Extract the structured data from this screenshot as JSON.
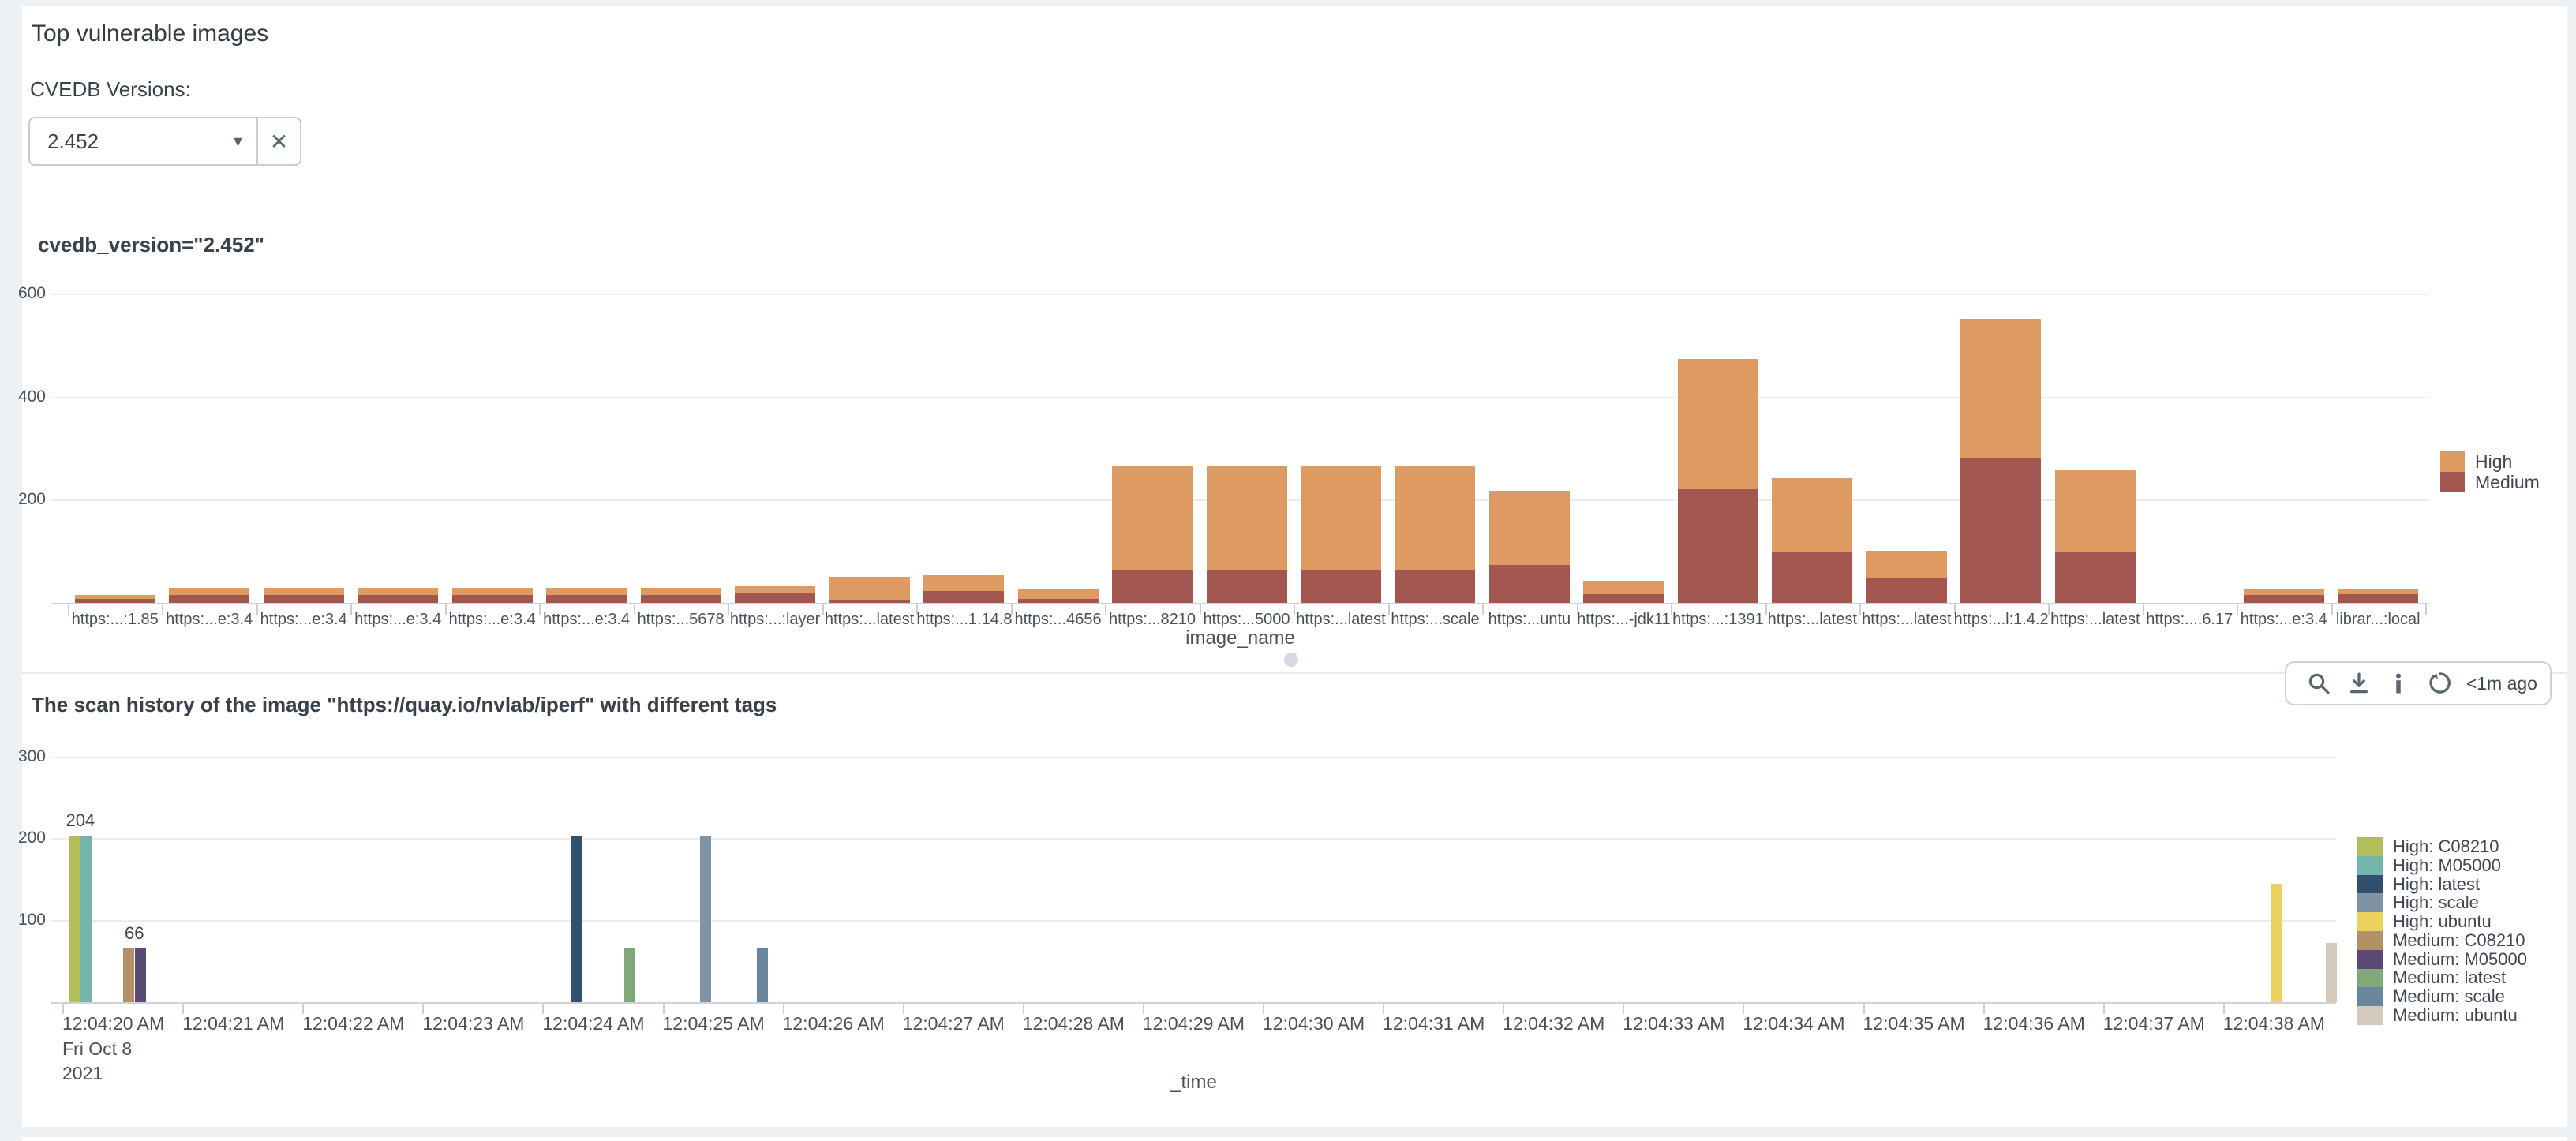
{
  "panel1": {
    "title": "Top vulnerable images",
    "filter_label": "CVEDB Versions:",
    "dropdown": {
      "value": "2.452",
      "caret_icon": "chevron-down-icon",
      "clear_icon": "close-icon",
      "clear_glyph": "✕"
    }
  },
  "toolbar": {
    "icons": [
      "search-icon",
      "download-icon",
      "info-icon",
      "refresh-icon"
    ],
    "freshness": "<1m ago"
  },
  "chart_data": [
    {
      "type": "bar",
      "stacked": true,
      "title": "cvedb_version=\"2.452\"",
      "xlabel": "image_name",
      "ylim": [
        0,
        640
      ],
      "yticks": [
        200,
        400,
        600
      ],
      "grid": true,
      "legend_position": "right",
      "categories": [
        "https:...:1.85",
        "https:...e:3.4",
        "https:...e:3.4",
        "https:...e:3.4",
        "https:...e:3.4",
        "https:...e:3.4",
        "https:...5678",
        "https:...:layer",
        "https:...latest",
        "https:...1.14.8",
        "https:...4656",
        "https:...8210",
        "https:...5000",
        "https:...latest",
        "https:...scale",
        "https:...untu",
        "https:...-jdk11",
        "https:...:1391",
        "https:...latest",
        "https:...latest",
        "https:...l:1.4.2",
        "https:...latest",
        "https:....6.17",
        "https:...e:3.4",
        "librar...:local"
      ],
      "series": [
        {
          "name": "High",
          "color": "#de9a60",
          "values": [
            8,
            14,
            14,
            14,
            14,
            14,
            14,
            14,
            45,
            31,
            18,
            203,
            203,
            203,
            203,
            144,
            26,
            253,
            145,
            54,
            272,
            160,
            0,
            13,
            11
          ]
        },
        {
          "name": "Medium",
          "color": "#a3554f",
          "values": [
            7,
            15,
            15,
            15,
            15,
            15,
            15,
            18,
            6,
            23,
            8,
            65,
            65,
            65,
            65,
            74,
            17,
            221,
            98,
            48,
            281,
            98,
            0,
            15,
            17
          ]
        }
      ]
    },
    {
      "type": "bar",
      "title": "The scan history of the image \"https://quay.io/nvlab/iperf\" with different tags",
      "xlabel": "_time",
      "ylim": [
        0,
        320
      ],
      "yticks": [
        100,
        200,
        300
      ],
      "grid": true,
      "legend_position": "right",
      "x_tick_labels": [
        "12:04:20 AM",
        "12:04:21 AM",
        "12:04:22 AM",
        "12:04:23 AM",
        "12:04:24 AM",
        "12:04:25 AM",
        "12:04:26 AM",
        "12:04:27 AM",
        "12:04:28 AM",
        "12:04:29 AM",
        "12:04:30 AM",
        "12:04:31 AM",
        "12:04:32 AM",
        "12:04:33 AM",
        "12:04:34 AM",
        "12:04:35 AM",
        "12:04:36 AM",
        "12:04:37 AM",
        "12:04:38 AM"
      ],
      "x_first_tick_sublabels": [
        "Fri Oct 8",
        "2021"
      ],
      "legend": [
        {
          "name": "High: C08210",
          "color": "#b2bf5a"
        },
        {
          "name": "High: M05000",
          "color": "#74b5ab"
        },
        {
          "name": "High: latest",
          "color": "#30506d"
        },
        {
          "name": "High: scale",
          "color": "#8093a5"
        },
        {
          "name": "High: ubuntu",
          "color": "#ecd15e"
        },
        {
          "name": "Medium: C08210",
          "color": "#b29166"
        },
        {
          "name": "Medium: M05000",
          "color": "#5b4a73"
        },
        {
          "name": "Medium: latest",
          "color": "#81a878"
        },
        {
          "name": "Medium: scale",
          "color": "#69869c"
        },
        {
          "name": "Medium: ubuntu",
          "color": "#d4cab9"
        }
      ],
      "points": [
        {
          "seconds": 0.1,
          "series": "High: C08210",
          "value": 204
        },
        {
          "seconds": 0.2,
          "series": "High: M05000",
          "value": 204
        },
        {
          "seconds": 0.55,
          "series": "Medium: C08210",
          "value": 66
        },
        {
          "seconds": 0.65,
          "series": "Medium: M05000",
          "value": 66
        },
        {
          "seconds": 4.28,
          "series": "High: latest",
          "value": 204
        },
        {
          "seconds": 4.73,
          "series": "Medium: latest",
          "value": 66
        },
        {
          "seconds": 5.36,
          "series": "High: scale",
          "value": 204
        },
        {
          "seconds": 5.83,
          "series": "Medium: scale",
          "value": 66
        },
        {
          "seconds": 18.45,
          "series": "High: ubuntu",
          "value": 145
        },
        {
          "seconds": 18.9,
          "series": "Medium: ubuntu",
          "value": 73
        }
      ],
      "annotations": [
        {
          "text": "204",
          "seconds": 0.15,
          "value": 204
        },
        {
          "text": "66",
          "seconds": 0.6,
          "value": 66
        }
      ]
    }
  ]
}
